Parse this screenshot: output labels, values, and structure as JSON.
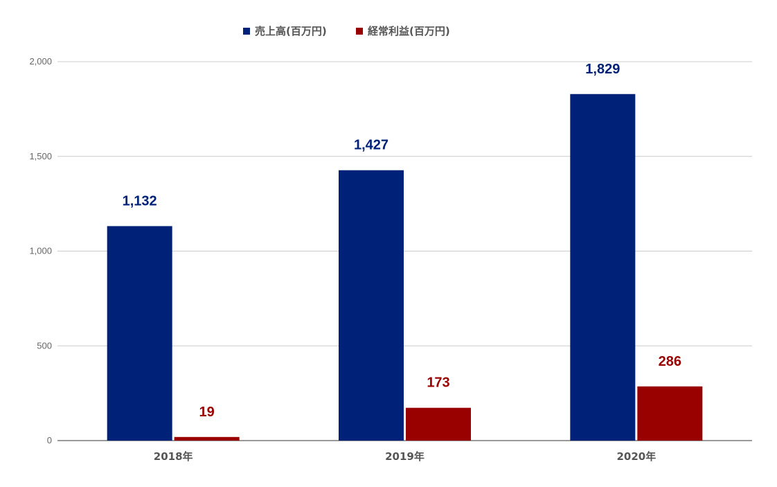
{
  "chart_data": {
    "type": "bar",
    "title": "",
    "xlabel": "",
    "ylabel": "",
    "categories": [
      "2018年",
      "2019年",
      "2020年"
    ],
    "series": [
      {
        "name": "売上高(百万円)",
        "color": "#002178",
        "values": [
          1132,
          1427,
          1829
        ],
        "labels": [
          "1,132",
          "1,427",
          "1,829"
        ]
      },
      {
        "name": "経常利益(百万円)",
        "color": "#990000",
        "values": [
          19,
          173,
          286
        ],
        "labels": [
          "19",
          "173",
          "286"
        ]
      }
    ],
    "ylim": [
      0,
      2000
    ],
    "yticks": [
      0,
      500,
      1000,
      1500,
      2000
    ],
    "ytick_labels": [
      "0",
      "500",
      "1,000",
      "1,500",
      "2,000"
    ],
    "grid": true,
    "legend_position": "top"
  }
}
